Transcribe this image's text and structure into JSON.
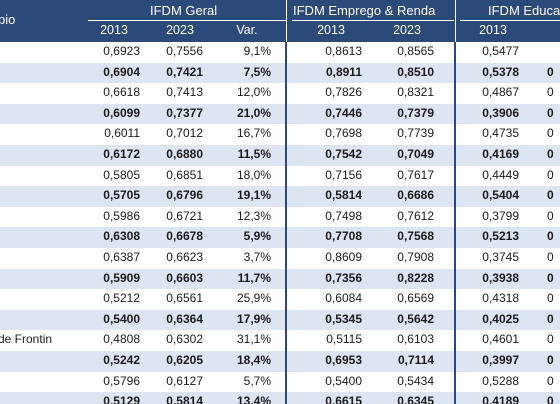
{
  "header": {
    "col_municipio": "pio",
    "groups": [
      "IFDM Geral",
      "IFDM Emprego & Renda",
      "IFDM Educa"
    ],
    "sub_geral": [
      "2013",
      "2023",
      "Var."
    ],
    "sub_emprego": [
      "2013",
      "2023"
    ],
    "sub_educa": [
      "2013"
    ]
  },
  "rows": [
    {
      "name": "",
      "g13": "0,6923",
      "g23": "0,7556",
      "var": "9,1%",
      "e13": "0,8613",
      "e23": "0,8565",
      "ed13": "0,5477",
      "ed23": "",
      "bold": false
    },
    {
      "name": "",
      "g13": "0,6904",
      "g23": "0,7421",
      "var": "7,5%",
      "e13": "0,8911",
      "e23": "0,8510",
      "ed13": "0,5378",
      "ed23": "0",
      "bold": true
    },
    {
      "name": "",
      "g13": "0,6618",
      "g23": "0,7413",
      "var": "12,0%",
      "e13": "0,7826",
      "e23": "0,8321",
      "ed13": "0,4867",
      "ed23": "0",
      "bold": false
    },
    {
      "name": "",
      "g13": "0,6099",
      "g23": "0,7377",
      "var": "21,0%",
      "e13": "0,7446",
      "e23": "0,7379",
      "ed13": "0,3906",
      "ed23": "0",
      "bold": true
    },
    {
      "name": "",
      "g13": "0,6011",
      "g23": "0,7012",
      "var": "16,7%",
      "e13": "0,7698",
      "e23": "0,7739",
      "ed13": "0,4735",
      "ed23": "0",
      "bold": false
    },
    {
      "name": "",
      "g13": "0,6172",
      "g23": "0,6880",
      "var": "11,5%",
      "e13": "0,7542",
      "e23": "0,7049",
      "ed13": "0,4169",
      "ed23": "0",
      "bold": true
    },
    {
      "name": "",
      "g13": "0,5805",
      "g23": "0,6851",
      "var": "18,0%",
      "e13": "0,7156",
      "e23": "0,7617",
      "ed13": "0,4449",
      "ed23": "0",
      "bold": false
    },
    {
      "name": "",
      "g13": "0,5705",
      "g23": "0,6796",
      "var": "19,1%",
      "e13": "0,5814",
      "e23": "0,6686",
      "ed13": "0,5404",
      "ed23": "0",
      "bold": true
    },
    {
      "name": "",
      "g13": "0,5986",
      "g23": "0,6721",
      "var": "12,3%",
      "e13": "0,7498",
      "e23": "0,7612",
      "ed13": "0,3799",
      "ed23": "0",
      "bold": false
    },
    {
      "name": "",
      "g13": "0,6308",
      "g23": "0,6678",
      "var": "5,9%",
      "e13": "0,7708",
      "e23": "0,7568",
      "ed13": "0,5213",
      "ed23": "0",
      "bold": true
    },
    {
      "name": "",
      "g13": "0,6387",
      "g23": "0,6623",
      "var": "3,7%",
      "e13": "0,8609",
      "e23": "0,7908",
      "ed13": "0,3745",
      "ed23": "0",
      "bold": false
    },
    {
      "name": "",
      "g13": "0,5909",
      "g23": "0,6603",
      "var": "11,7%",
      "e13": "0,7356",
      "e23": "0,8228",
      "ed13": "0,3938",
      "ed23": "0",
      "bold": true
    },
    {
      "name": "",
      "g13": "0,5212",
      "g23": "0,6561",
      "var": "25,9%",
      "e13": "0,6084",
      "e23": "0,6569",
      "ed13": "0,4318",
      "ed23": "0",
      "bold": false
    },
    {
      "name": "",
      "g13": "0,5400",
      "g23": "0,6364",
      "var": "17,9%",
      "e13": "0,5345",
      "e23": "0,5642",
      "ed13": "0,4025",
      "ed23": "0",
      "bold": true
    },
    {
      "name": "de Frontin",
      "g13": "0,4808",
      "g23": "0,6302",
      "var": "31,1%",
      "e13": "0,5115",
      "e23": "0,6103",
      "ed13": "0,4601",
      "ed23": "0",
      "bold": false
    },
    {
      "name": "",
      "g13": "0,5242",
      "g23": "0,6205",
      "var": "18,4%",
      "e13": "0,6953",
      "e23": "0,7114",
      "ed13": "0,3997",
      "ed23": "0",
      "bold": true
    },
    {
      "name": "",
      "g13": "0,5796",
      "g23": "0,6127",
      "var": "5,7%",
      "e13": "0,5400",
      "e23": "0,5434",
      "ed13": "0,5288",
      "ed23": "0",
      "bold": false
    },
    {
      "name": "",
      "g13": "0,5129",
      "g23": "0,5814",
      "var": "13,4%",
      "e13": "0,6615",
      "e23": "0,6345",
      "ed13": "0,4189",
      "ed23": "0",
      "bold": true
    }
  ]
}
